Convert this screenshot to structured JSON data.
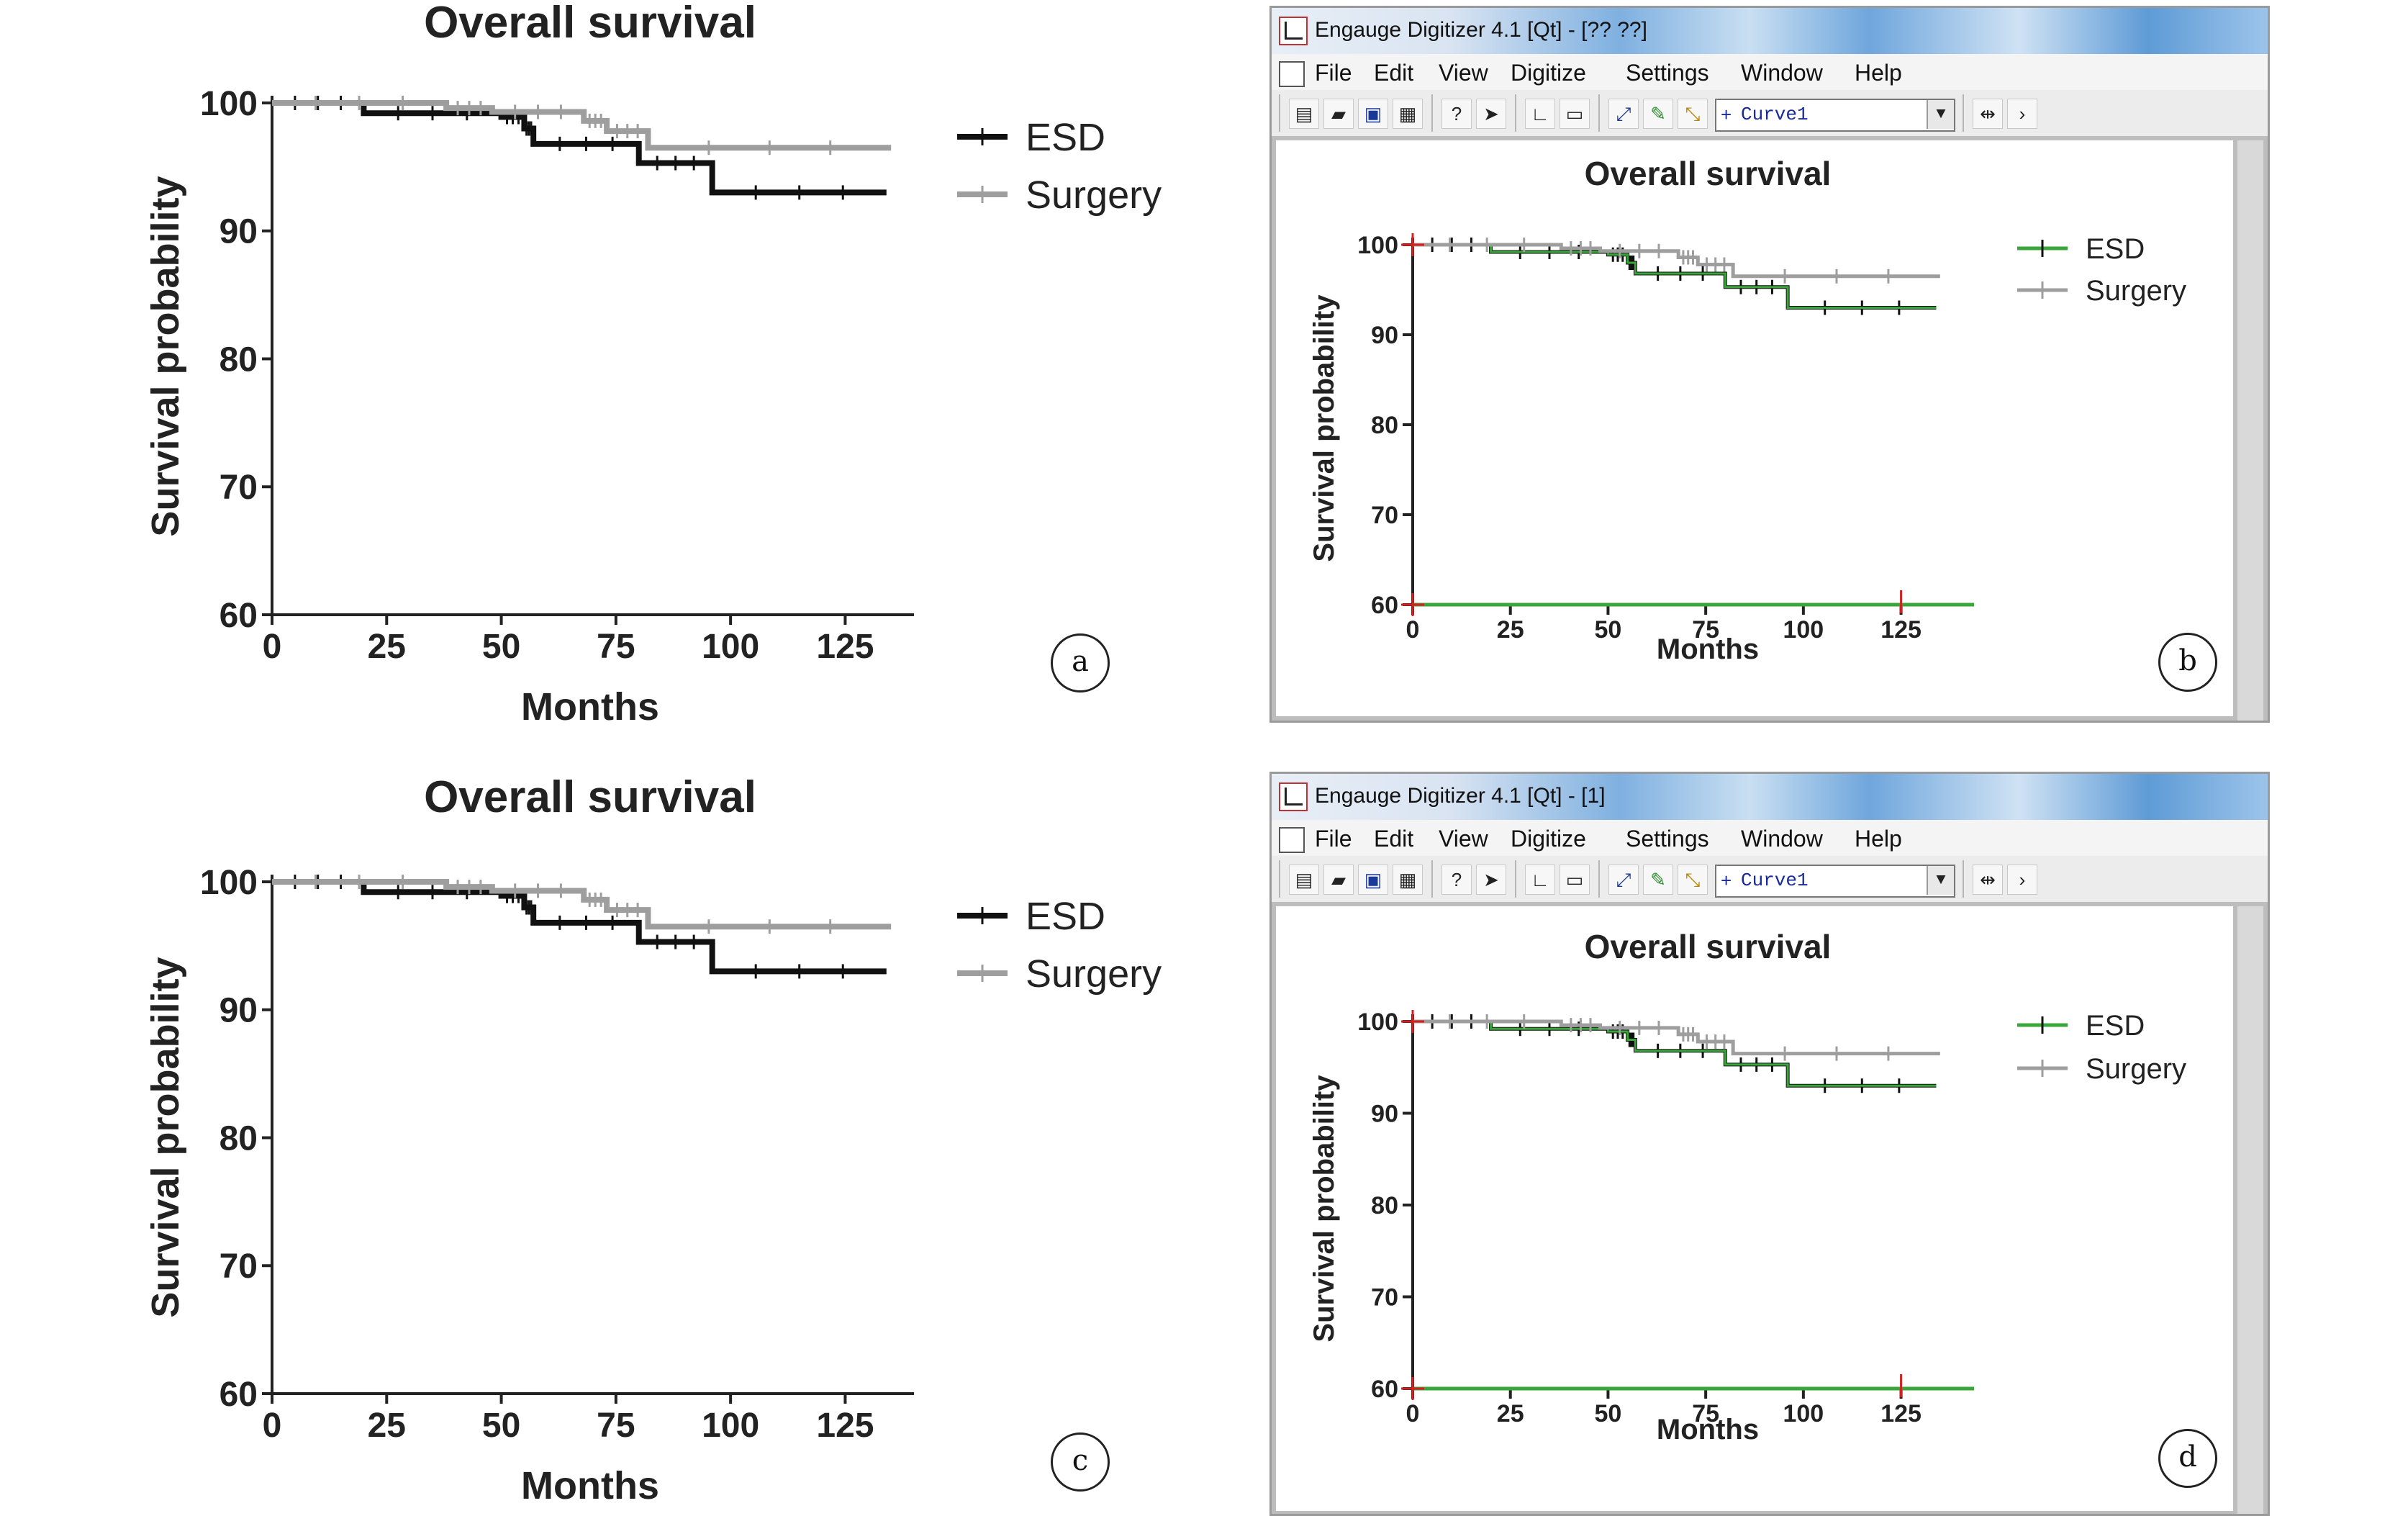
{
  "panels": {
    "a": {
      "label": "a"
    },
    "b": {
      "label": "b"
    },
    "c": {
      "label": "c"
    },
    "d": {
      "label": "d"
    }
  },
  "window_b": {
    "title": "Engauge Digitizer 4.1 [Qt] - [?? ??]",
    "curve_select": "Curve1"
  },
  "window_d": {
    "title": "Engauge Digitizer 4.1 [Qt] - [1]",
    "curve_select": "Curve1"
  },
  "menu": [
    "File",
    "Edit",
    "View",
    "Digitize",
    "Settings",
    "Window",
    "Help"
  ],
  "icons": [
    "new-icon",
    "open-icon",
    "save-icon",
    "print-icon",
    "whats-this-icon",
    "select-arrow-icon",
    "axis-point-icon",
    "scale-bar-icon",
    "curve-point-icon",
    "segment-fill-icon",
    "point-match-icon",
    "zoom-width-icon"
  ],
  "colors": {
    "esd": "#111111",
    "surgery": "#9e9e9e",
    "digitized": "#3aa53a",
    "axis_marker": "#d42020"
  },
  "chart_data": [
    {
      "id": "a",
      "type": "line",
      "title": "Overall survival",
      "xlabel": "Months",
      "ylabel": "Survival probability",
      "xlim": [
        0,
        140
      ],
      "ylim": [
        60,
        100
      ],
      "xticks": [
        0,
        25,
        50,
        75,
        100,
        125
      ],
      "yticks": [
        60,
        70,
        80,
        90,
        100
      ],
      "legend": "right",
      "series": [
        {
          "name": "ESD",
          "step": true,
          "x": [
            0,
            20,
            50,
            55,
            57,
            80,
            96,
            134
          ],
          "y": [
            100,
            99.2,
            98.9,
            98.0,
            96.8,
            95.3,
            93.0,
            93.0
          ]
        },
        {
          "name": "Surgery",
          "step": true,
          "x": [
            0,
            38,
            48,
            68,
            73,
            82,
            135
          ],
          "y": [
            100,
            99.6,
            99.3,
            98.6,
            97.8,
            96.5,
            96.5
          ]
        }
      ]
    },
    {
      "id": "b",
      "type": "line",
      "title": "Overall survival",
      "xlabel": "Months",
      "ylabel": "Survival probability",
      "xlim": [
        0,
        140
      ],
      "ylim": [
        60,
        100
      ],
      "xticks": [
        0,
        25,
        50,
        75,
        100,
        125
      ],
      "yticks": [
        60,
        70,
        80,
        90,
        100
      ],
      "legend": "right",
      "series": [
        {
          "name": "ESD",
          "step": true,
          "x": [
            0,
            20,
            50,
            55,
            57,
            80,
            96,
            134
          ],
          "y": [
            100,
            99.2,
            98.9,
            98.0,
            96.8,
            95.3,
            93.0,
            93.0
          ]
        },
        {
          "name": "Surgery",
          "step": true,
          "x": [
            0,
            38,
            48,
            68,
            73,
            82,
            135
          ],
          "y": [
            100,
            99.6,
            99.3,
            98.6,
            97.8,
            96.5,
            96.5
          ]
        }
      ]
    },
    {
      "id": "c",
      "type": "line",
      "title": "Overall survival",
      "xlabel": "Months",
      "ylabel": "Survival probability",
      "xlim": [
        0,
        140
      ],
      "ylim": [
        60,
        100
      ],
      "xticks": [
        0,
        25,
        50,
        75,
        100,
        125
      ],
      "yticks": [
        60,
        70,
        80,
        90,
        100
      ],
      "legend": "right",
      "series": [
        {
          "name": "ESD",
          "step": true,
          "x": [
            0,
            20,
            50,
            55,
            57,
            80,
            96,
            134
          ],
          "y": [
            100,
            99.2,
            98.9,
            98.0,
            96.8,
            95.3,
            93.0,
            93.0
          ]
        },
        {
          "name": "Surgery",
          "step": true,
          "x": [
            0,
            38,
            48,
            68,
            73,
            82,
            135
          ],
          "y": [
            100,
            99.6,
            99.3,
            98.6,
            97.8,
            96.5,
            96.5
          ]
        }
      ]
    },
    {
      "id": "d",
      "type": "line",
      "title": "Overall survival",
      "xlabel": "Months",
      "ylabel": "Survival probability",
      "xlim": [
        0,
        140
      ],
      "ylim": [
        60,
        100
      ],
      "xticks": [
        0,
        25,
        50,
        75,
        100,
        125
      ],
      "yticks": [
        60,
        70,
        80,
        90,
        100
      ],
      "legend": "right",
      "series": [
        {
          "name": "ESD",
          "step": true,
          "x": [
            0,
            20,
            50,
            55,
            57,
            80,
            96,
            134
          ],
          "y": [
            100,
            99.2,
            98.9,
            98.0,
            96.8,
            95.3,
            93.0,
            93.0
          ]
        },
        {
          "name": "Surgery",
          "step": true,
          "x": [
            0,
            38,
            48,
            68,
            73,
            82,
            135
          ],
          "y": [
            100,
            99.6,
            99.3,
            98.6,
            97.8,
            96.5,
            96.5
          ]
        }
      ]
    }
  ]
}
